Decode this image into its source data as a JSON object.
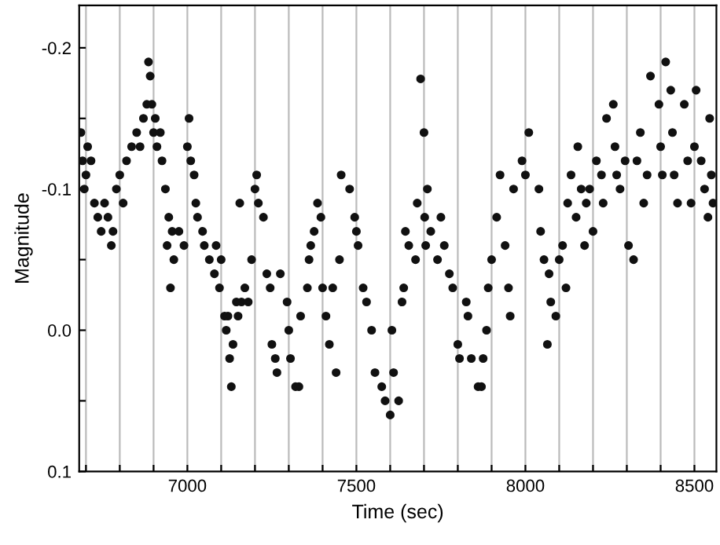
{
  "chart_data": {
    "type": "scatter",
    "xlabel": "Time (sec)",
    "ylabel": "Magnitude",
    "xlim": [
      6680,
      8565
    ],
    "ylim": [
      0.1,
      -0.23
    ],
    "xticks": [
      {
        "value": 6700,
        "label": null
      },
      {
        "value": 6800,
        "label": null
      },
      {
        "value": 6900,
        "label": null
      },
      7000,
      {
        "value": 7100,
        "label": null
      },
      {
        "value": 7200,
        "label": null
      },
      {
        "value": 7300,
        "label": null
      },
      {
        "value": 7400,
        "label": null
      },
      7500,
      {
        "value": 7600,
        "label": null
      },
      {
        "value": 7700,
        "label": null
      },
      {
        "value": 7800,
        "label": null
      },
      {
        "value": 7900,
        "label": null
      },
      8000,
      {
        "value": 8100,
        "label": null
      },
      {
        "value": 8200,
        "label": null
      },
      {
        "value": 8300,
        "label": null
      },
      {
        "value": 8400,
        "label": null
      },
      8500
    ],
    "yticks": [
      {
        "value": -0.2,
        "label": "-0.2"
      },
      {
        "value": -0.15,
        "label": null
      },
      {
        "value": -0.1,
        "label": "-0.1"
      },
      {
        "value": -0.05,
        "label": null
      },
      {
        "value": 0.0,
        "label": "0.0"
      },
      {
        "value": 0.05,
        "label": null
      },
      {
        "value": 0.1,
        "label": "0.1"
      }
    ],
    "grid": "x",
    "marker": "circle",
    "series": [
      {
        "color": "#111111",
        "x": [
          6685,
          6690,
          6695,
          6700,
          6705,
          6715,
          6725,
          6735,
          6745,
          6755,
          6765,
          6775,
          6780,
          6790,
          6800,
          6810,
          6820,
          6835,
          6850,
          6860,
          6870,
          6880,
          6885,
          6890,
          6895,
          6900,
          6905,
          6910,
          6920,
          6925,
          6935,
          6940,
          6945,
          6950,
          6955,
          6960,
          6975,
          6990,
          7000,
          7005,
          7010,
          7020,
          7025,
          7030,
          7045,
          7050,
          7065,
          7080,
          7085,
          7095,
          7100,
          7110,
          7115,
          7120,
          7125,
          7130,
          7135,
          7145,
          7150,
          7155,
          7160,
          7170,
          7180,
          7190,
          7200,
          7205,
          7210,
          7225,
          7235,
          7245,
          7250,
          7260,
          7265,
          7275,
          7295,
          7300,
          7305,
          7320,
          7330,
          7335,
          7355,
          7360,
          7365,
          7375,
          7385,
          7395,
          7400,
          7410,
          7420,
          7430,
          7440,
          7450,
          7455,
          7480,
          7495,
          7500,
          7505,
          7520,
          7530,
          7545,
          7555,
          7575,
          7585,
          7600,
          7605,
          7610,
          7625,
          7635,
          7640,
          7645,
          7655,
          7675,
          7680,
          7690,
          7700,
          7702,
          7705,
          7710,
          7720,
          7740,
          7750,
          7760,
          7775,
          7785,
          7800,
          7805,
          7825,
          7830,
          7840,
          7860,
          7870,
          7875,
          7885,
          7890,
          7900,
          7915,
          7925,
          7940,
          7950,
          7955,
          7965,
          7990,
          8000,
          8010,
          8040,
          8045,
          8055,
          8065,
          8070,
          8075,
          8090,
          8100,
          8110,
          8120,
          8125,
          8135,
          8150,
          8155,
          8165,
          8175,
          8180,
          8190,
          8200,
          8210,
          8225,
          8230,
          8240,
          8260,
          8265,
          8270,
          8280,
          8295,
          8305,
          8320,
          8330,
          8340,
          8350,
          8360,
          8370,
          8395,
          8400,
          8405,
          8415,
          8430,
          8435,
          8440,
          8450,
          8470,
          8480,
          8490,
          8500,
          8505,
          8520,
          8530,
          8540,
          8545,
          8550,
          8555
        ],
        "values": [
          -0.14,
          -0.12,
          -0.1,
          -0.11,
          -0.13,
          -0.12,
          -0.09,
          -0.08,
          -0.07,
          -0.09,
          -0.08,
          -0.06,
          -0.07,
          -0.1,
          -0.11,
          -0.09,
          -0.12,
          -0.13,
          -0.14,
          -0.13,
          -0.15,
          -0.16,
          -0.19,
          -0.18,
          -0.16,
          -0.14,
          -0.15,
          -0.13,
          -0.14,
          -0.12,
          -0.1,
          -0.06,
          -0.08,
          -0.03,
          -0.07,
          -0.05,
          -0.07,
          -0.06,
          -0.13,
          -0.15,
          -0.12,
          -0.11,
          -0.09,
          -0.08,
          -0.07,
          -0.06,
          -0.05,
          -0.04,
          -0.06,
          -0.03,
          -0.05,
          -0.01,
          0.0,
          -0.01,
          0.02,
          0.04,
          0.01,
          -0.02,
          -0.01,
          -0.09,
          -0.02,
          -0.03,
          -0.02,
          -0.05,
          -0.1,
          -0.11,
          -0.09,
          -0.08,
          -0.04,
          -0.03,
          0.01,
          0.02,
          0.03,
          -0.04,
          -0.02,
          0.0,
          0.02,
          0.04,
          0.04,
          -0.01,
          -0.03,
          -0.05,
          -0.06,
          -0.07,
          -0.09,
          -0.08,
          -0.03,
          -0.01,
          0.01,
          -0.03,
          0.03,
          -0.05,
          -0.11,
          -0.1,
          -0.08,
          -0.07,
          -0.06,
          -0.03,
          -0.02,
          0.0,
          0.03,
          0.04,
          0.05,
          0.06,
          0.0,
          0.03,
          0.05,
          -0.02,
          -0.03,
          -0.07,
          -0.06,
          -0.05,
          -0.09,
          -0.178,
          -0.14,
          -0.08,
          -0.06,
          -0.1,
          -0.07,
          -0.05,
          -0.08,
          -0.06,
          -0.04,
          -0.03,
          0.01,
          0.02,
          -0.02,
          -0.01,
          0.02,
          0.04,
          0.04,
          0.02,
          0.0,
          -0.03,
          -0.05,
          -0.08,
          -0.11,
          -0.06,
          -0.03,
          -0.01,
          -0.1,
          -0.12,
          -0.11,
          -0.14,
          -0.1,
          -0.07,
          -0.05,
          0.01,
          -0.04,
          -0.02,
          -0.01,
          -0.05,
          -0.06,
          -0.03,
          -0.09,
          -0.11,
          -0.08,
          -0.13,
          -0.1,
          -0.06,
          -0.09,
          -0.1,
          -0.07,
          -0.12,
          -0.11,
          -0.09,
          -0.15,
          -0.16,
          -0.13,
          -0.11,
          -0.1,
          -0.12,
          -0.06,
          -0.05,
          -0.12,
          -0.14,
          -0.09,
          -0.11,
          -0.18,
          -0.16,
          -0.13,
          -0.11,
          -0.19,
          -0.17,
          -0.14,
          -0.11,
          -0.09,
          -0.16,
          -0.12,
          -0.09,
          -0.13,
          -0.17,
          -0.12,
          -0.1,
          -0.08,
          -0.15,
          -0.11,
          -0.09
        ]
      }
    ]
  }
}
